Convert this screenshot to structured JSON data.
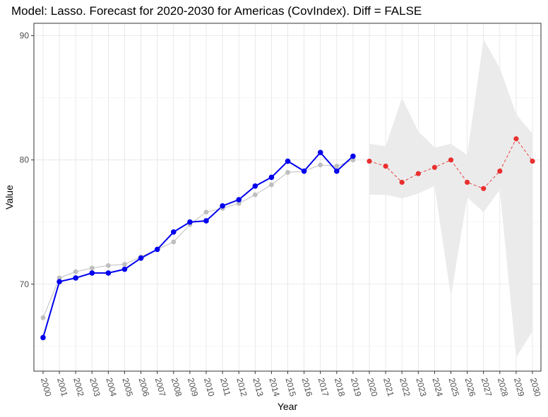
{
  "chart_data": {
    "type": "line",
    "title": "Model: Lasso. Forecast for 2020-2030 for Americas (CovIndex). Diff = FALSE",
    "xlabel": "Year",
    "ylabel": "Value",
    "ylim": [
      63,
      91
    ],
    "y_ticks": [
      70,
      80,
      90
    ],
    "grid": true,
    "legend": "none",
    "categories": [
      "2000",
      "2001",
      "2002",
      "2003",
      "2004",
      "2005",
      "2006",
      "2007",
      "2008",
      "2009",
      "2010",
      "2011",
      "2012",
      "2013",
      "2014",
      "2015",
      "2016",
      "2017",
      "2018",
      "2019",
      "2020",
      "2021",
      "2022",
      "2023",
      "2024",
      "2025",
      "2026",
      "2027",
      "2028",
      "2029",
      "2030"
    ],
    "series": [
      {
        "role": "fitted",
        "color": "#bebebe",
        "x": [
          "2000",
          "2001",
          "2002",
          "2003",
          "2004",
          "2005",
          "2006",
          "2007",
          "2008",
          "2009",
          "2010",
          "2011",
          "2012",
          "2013",
          "2014",
          "2015",
          "2016",
          "2017",
          "2018",
          "2019"
        ],
        "values": [
          67.3,
          70.5,
          71.0,
          71.3,
          71.5,
          71.6,
          72.2,
          72.8,
          73.4,
          74.8,
          75.8,
          76.1,
          76.5,
          77.2,
          78.0,
          79.0,
          79.1,
          79.6,
          79.5,
          80.0
        ]
      },
      {
        "role": "actual",
        "color": "#0000ee",
        "x": [
          "2000",
          "2001",
          "2002",
          "2003",
          "2004",
          "2005",
          "2006",
          "2007",
          "2008",
          "2009",
          "2010",
          "2011",
          "2012",
          "2013",
          "2014",
          "2015",
          "2016",
          "2017",
          "2018",
          "2019"
        ],
        "values": [
          65.7,
          70.2,
          70.5,
          70.9,
          70.9,
          71.2,
          72.1,
          72.8,
          74.2,
          75.0,
          75.1,
          76.3,
          76.8,
          77.9,
          78.6,
          79.9,
          79.1,
          80.6,
          79.1,
          80.3
        ]
      },
      {
        "role": "forecast",
        "color": "#e8302f",
        "x": [
          "2020",
          "2021",
          "2022",
          "2023",
          "2024",
          "2025",
          "2026",
          "2027",
          "2028",
          "2029",
          "2030"
        ],
        "values": [
          79.9,
          79.5,
          78.2,
          78.9,
          79.4,
          80.0,
          78.2,
          77.7,
          79.1,
          81.7,
          79.9
        ],
        "lower": [
          77.2,
          77.2,
          76.9,
          77.3,
          77.9,
          69.0,
          77.0,
          75.8,
          77.6,
          64.1,
          66.2
        ],
        "upper": [
          81.3,
          81.1,
          85.0,
          82.3,
          81.0,
          81.3,
          80.4,
          89.7,
          87.4,
          83.7,
          82.1
        ]
      }
    ]
  }
}
